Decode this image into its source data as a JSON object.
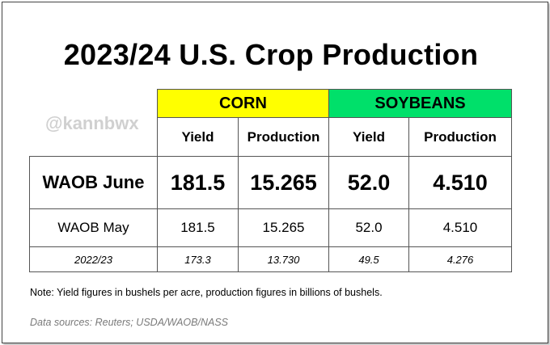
{
  "chart_data": {
    "type": "table",
    "title": "2023/24 U.S. Crop Production",
    "watermark": "@kannbwx",
    "groups": [
      {
        "name": "CORN",
        "color": "#ffff00"
      },
      {
        "name": "SOYBEANS",
        "color": "#00e06a"
      }
    ],
    "columns": [
      "Yield",
      "Production",
      "Yield",
      "Production"
    ],
    "rows": [
      {
        "label": "WAOB June",
        "values": [
          "181.5",
          "15.265",
          "52.0",
          "4.510"
        ]
      },
      {
        "label": "WAOB May",
        "values": [
          "181.5",
          "15.265",
          "52.0",
          "4.510"
        ]
      },
      {
        "label": "2022/23",
        "values": [
          "173.3",
          "13.730",
          "49.5",
          "4.276"
        ]
      }
    ],
    "note": "Note: Yield figures in bushels per acre, production figures in billions of bushels.",
    "sources": "Data sources: Reuters; USDA/WAOB/NASS"
  }
}
